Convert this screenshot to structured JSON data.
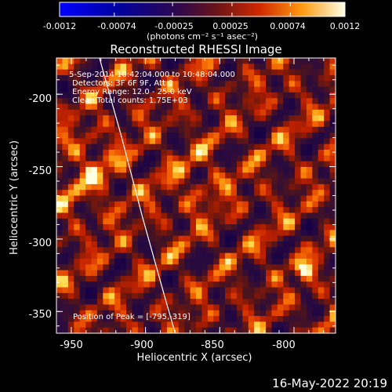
{
  "colorbar": {
    "tick_labels": [
      "-0.0012",
      "-0.00074",
      "-0.00025",
      "0.00025",
      "0.00074",
      "0.0012"
    ],
    "unit_label": "(photons cm⁻² s⁻¹ asec⁻²)",
    "range": [
      -0.0012,
      0.0012
    ]
  },
  "chart_data": {
    "type": "heatmap",
    "title": "Reconstructed RHESSI Image",
    "xlabel": "Heliocentric X (arcsec)",
    "ylabel": "Heliocentric Y (arcsec)",
    "xlim": [
      -960,
      -772
    ],
    "ylim": [
      -365,
      -175
    ],
    "xticks": [
      -950,
      -900,
      -850,
      -800
    ],
    "yticks": [
      -200,
      -250,
      -300,
      -350
    ],
    "annotations": [
      "5-Sep-2014 10:42:04.000 to 10:48:04.000",
      "Detectors: 3F 6F 9F, Att 0",
      "Energy Range: 12.0 - 25.0 keV",
      "Clean     Total counts: 1.75E+03"
    ],
    "peak_label": "Position of Peak = [-795,-319]",
    "peak": [
      -795,
      -319
    ],
    "limb": [
      [
        -931,
        -175
      ],
      [
        -916,
        -230
      ],
      [
        -902,
        -285
      ],
      [
        -887,
        -340
      ],
      [
        -880,
        -365
      ]
    ]
  },
  "footer": {
    "timestamp": "16-May-2022 20:19"
  }
}
